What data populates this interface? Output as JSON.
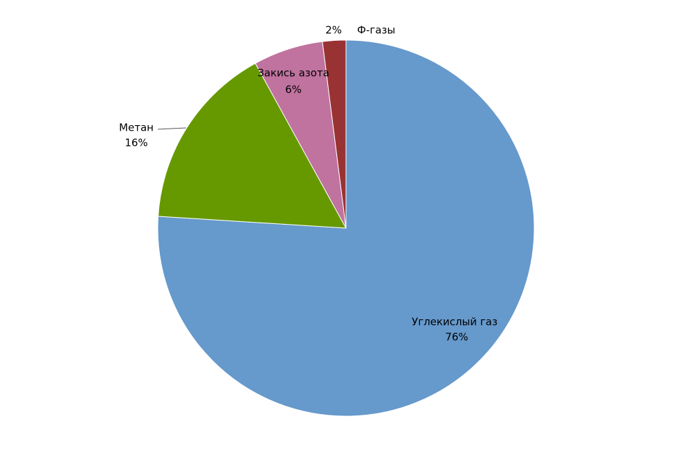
{
  "chart_data": {
    "type": "pie",
    "categories": [
      "Углекислый газ",
      "Метан",
      "Закись азота",
      "Ф-газы"
    ],
    "values": [
      76,
      16,
      6,
      2
    ],
    "value_labels": [
      "76%",
      "16%",
      "6%",
      "2%"
    ],
    "colors": [
      "#6699cc",
      "#669900",
      "#c0739f",
      "#993333"
    ]
  }
}
